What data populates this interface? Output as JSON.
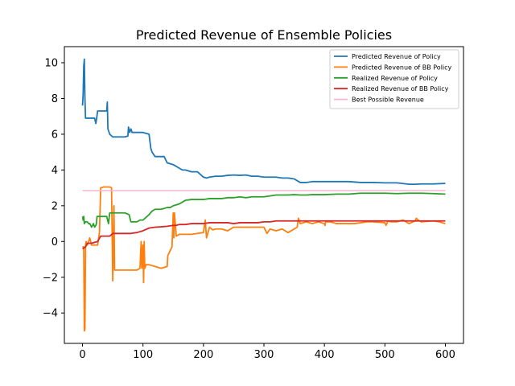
{
  "chart_data": {
    "type": "line",
    "title": "Predicted Revenue of Ensemble Policies",
    "xlabel": "",
    "ylabel": "",
    "xlim": [
      -30,
      630
    ],
    "ylim": [
      -5.7,
      10.9
    ],
    "xticks": [
      0,
      100,
      200,
      300,
      400,
      500,
      600
    ],
    "yticks": [
      -4,
      -2,
      0,
      2,
      4,
      6,
      8,
      10
    ],
    "grid": false,
    "legend_position": "top-right",
    "series": [
      {
        "name": "Predicted Revenue of Policy",
        "color": "#1f77b4",
        "x": [
          0,
          1,
          2,
          3,
          4,
          5,
          10,
          15,
          20,
          22,
          23,
          25,
          27,
          30,
          35,
          40,
          41,
          42,
          45,
          50,
          60,
          70,
          75,
          76,
          78,
          80,
          82,
          85,
          90,
          100,
          110,
          113,
          115,
          120,
          135,
          140,
          150,
          160,
          165,
          170,
          180,
          190,
          200,
          205,
          210,
          220,
          230,
          240,
          250,
          260,
          270,
          280,
          290,
          300,
          310,
          320,
          330,
          340,
          350,
          360,
          370,
          380,
          390,
          400,
          420,
          440,
          460,
          480,
          500,
          520,
          540,
          550,
          560,
          580,
          600
        ],
        "y": [
          7.6,
          8.2,
          9.8,
          10.2,
          8.0,
          6.9,
          6.9,
          6.9,
          6.9,
          6.6,
          6.8,
          7.3,
          7.3,
          7.3,
          7.3,
          7.3,
          7.8,
          6.3,
          6.0,
          5.85,
          5.85,
          5.85,
          5.9,
          6.4,
          6.1,
          6.3,
          6.1,
          6.1,
          6.1,
          6.1,
          6.0,
          5.2,
          5.0,
          4.75,
          4.75,
          4.4,
          4.3,
          4.1,
          4.0,
          4.0,
          3.9,
          3.9,
          3.6,
          3.55,
          3.6,
          3.65,
          3.65,
          3.7,
          3.72,
          3.7,
          3.72,
          3.65,
          3.65,
          3.6,
          3.6,
          3.6,
          3.55,
          3.55,
          3.5,
          3.3,
          3.3,
          3.35,
          3.35,
          3.35,
          3.35,
          3.35,
          3.3,
          3.3,
          3.28,
          3.28,
          3.2,
          3.2,
          3.22,
          3.22,
          3.25
        ]
      },
      {
        "name": "Predicted Revenue of BB Policy",
        "color": "#ff7f0e",
        "x": [
          0,
          2,
          3,
          4,
          5,
          6,
          8,
          10,
          12,
          15,
          20,
          25,
          28,
          30,
          35,
          45,
          48,
          50,
          52,
          53,
          55,
          60,
          70,
          80,
          90,
          95,
          97,
          98,
          100,
          101,
          102,
          103,
          105,
          110,
          120,
          130,
          140,
          141,
          145,
          148,
          150,
          151,
          152,
          155,
          160,
          170,
          180,
          190,
          200,
          203,
          205,
          210,
          215,
          220,
          230,
          240,
          250,
          260,
          270,
          280,
          290,
          300,
          305,
          310,
          320,
          330,
          340,
          350,
          355,
          357,
          360,
          365,
          370,
          380,
          390,
          400,
          401,
          402,
          410,
          420,
          430,
          440,
          450,
          460,
          470,
          480,
          500,
          502,
          505,
          510,
          520,
          530,
          540,
          550,
          552,
          555,
          560,
          580,
          590,
          600
        ],
        "y": [
          -0.3,
          -0.3,
          -5.0,
          -4.9,
          -0.2,
          0.0,
          -0.2,
          0.0,
          0.2,
          -0.2,
          -0.2,
          -0.2,
          0.5,
          3.0,
          3.05,
          3.05,
          3.0,
          -2.2,
          2.0,
          -1.6,
          -1.6,
          -1.6,
          -1.6,
          -1.6,
          -1.6,
          -1.5,
          0.0,
          -1.5,
          -0.2,
          -2.3,
          0.0,
          -1.5,
          -1.3,
          -1.3,
          -1.4,
          -1.5,
          -1.4,
          -0.8,
          -0.5,
          -0.3,
          1.6,
          0.2,
          1.6,
          0.3,
          0.4,
          0.4,
          0.4,
          0.45,
          0.5,
          1.2,
          0.2,
          0.8,
          0.65,
          0.7,
          0.7,
          0.6,
          0.8,
          0.8,
          0.8,
          0.8,
          0.8,
          0.8,
          0.45,
          0.7,
          0.6,
          0.7,
          0.5,
          0.7,
          0.8,
          1.3,
          1.0,
          1.05,
          1.1,
          1.0,
          1.1,
          1.0,
          0.9,
          1.1,
          1.1,
          1.0,
          1.0,
          1.0,
          1.0,
          1.05,
          1.1,
          1.1,
          1.05,
          0.9,
          1.15,
          1.1,
          1.1,
          1.2,
          1.0,
          1.15,
          1.3,
          1.2,
          1.1,
          1.15,
          1.1,
          1.0
        ]
      },
      {
        "name": "Realized Revenue of Policy",
        "color": "#2ca02c",
        "x": [
          0,
          1,
          2,
          3,
          5,
          8,
          10,
          12,
          15,
          18,
          20,
          22,
          23,
          24,
          25,
          30,
          40,
          43,
          45,
          50,
          60,
          70,
          77,
          80,
          85,
          90,
          95,
          100,
          110,
          115,
          120,
          130,
          140,
          145,
          150,
          160,
          170,
          180,
          190,
          200,
          210,
          220,
          230,
          240,
          250,
          260,
          270,
          280,
          290,
          300,
          310,
          320,
          330,
          340,
          350,
          360,
          370,
          380,
          390,
          400,
          420,
          440,
          460,
          480,
          500,
          520,
          540,
          560,
          580,
          600
        ],
        "y": [
          1.4,
          1.2,
          1.4,
          1.0,
          1.1,
          1.1,
          1.0,
          1.0,
          0.8,
          1.0,
          0.8,
          0.9,
          1.0,
          1.4,
          1.4,
          1.4,
          1.4,
          1.0,
          1.6,
          1.6,
          1.6,
          1.6,
          1.5,
          1.1,
          1.1,
          1.1,
          1.2,
          1.2,
          1.5,
          1.7,
          1.8,
          1.8,
          1.9,
          1.9,
          2.0,
          2.1,
          2.3,
          2.35,
          2.35,
          2.35,
          2.4,
          2.4,
          2.4,
          2.45,
          2.45,
          2.5,
          2.45,
          2.5,
          2.5,
          2.5,
          2.55,
          2.6,
          2.6,
          2.6,
          2.62,
          2.6,
          2.6,
          2.62,
          2.62,
          2.62,
          2.65,
          2.65,
          2.7,
          2.7,
          2.7,
          2.68,
          2.7,
          2.7,
          2.68,
          2.65
        ]
      },
      {
        "name": "Realized Revenue of BB Policy",
        "color": "#d62728",
        "x": [
          0,
          3,
          5,
          8,
          10,
          15,
          20,
          25,
          30,
          40,
          45,
          50,
          60,
          70,
          80,
          90,
          100,
          110,
          120,
          130,
          140,
          150,
          155,
          160,
          170,
          180,
          190,
          200,
          210,
          220,
          230,
          240,
          250,
          260,
          270,
          280,
          290,
          300,
          310,
          320,
          340,
          360,
          380,
          400,
          450,
          500,
          550,
          600
        ],
        "y": [
          -0.4,
          -0.35,
          -0.3,
          -0.1,
          -0.1,
          -0.1,
          -0.05,
          0.0,
          0.3,
          0.3,
          0.3,
          0.45,
          0.45,
          0.45,
          0.45,
          0.5,
          0.6,
          0.75,
          0.8,
          0.82,
          0.85,
          0.9,
          0.9,
          0.95,
          0.95,
          1.0,
          1.0,
          1.0,
          1.05,
          1.05,
          1.05,
          1.05,
          1.0,
          1.05,
          1.05,
          1.05,
          1.05,
          1.1,
          1.1,
          1.15,
          1.15,
          1.15,
          1.15,
          1.15,
          1.15,
          1.15,
          1.15,
          1.15
        ]
      },
      {
        "name": "Best Possible Revenue",
        "color": "#f7b6d2",
        "x": [
          0,
          600
        ],
        "y": [
          2.85,
          2.85
        ]
      }
    ]
  }
}
